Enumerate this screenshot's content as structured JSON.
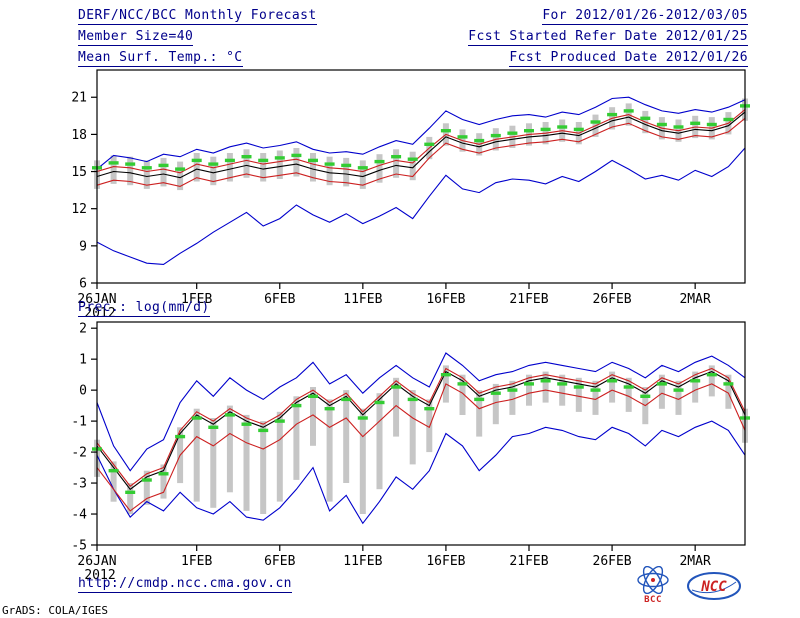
{
  "header": {
    "title": "DERF/NCC/BCC Monthly Forecast",
    "member_size": "Member Size=40",
    "for_range": "For 2012/01/26-2012/03/05",
    "fcst_refer": "Fcst Started Refer Date 2012/01/25",
    "fcst_produced": "Fcst Produced Date 2012/01/26"
  },
  "footer": {
    "url": "http://cmdp.ncc.cma.gov.cn",
    "credit": "GrADS: COLA/IGES",
    "logos": [
      {
        "name": "bcc-logo",
        "label": "BCC"
      },
      {
        "name": "ncc-logo",
        "label": "NCC"
      }
    ]
  },
  "colors": {
    "blue": "#0000cc",
    "red": "#cc2020",
    "black": "#000000",
    "green": "#33cc33",
    "spread_bar": "#c6c6c6",
    "header_text": "#00008b"
  },
  "chart_data": [
    {
      "name": "surface-temperature",
      "type": "line",
      "title": "Mean Surf. Temp.: °C",
      "xlabel": "",
      "ylabel": "°C",
      "grid": false,
      "legend": "none",
      "n_points": 40,
      "ylim": [
        6,
        23.2
      ],
      "yticks": [
        6,
        9,
        12,
        15,
        18,
        21
      ],
      "xticks": [
        {
          "index": 0,
          "label": "26JAN",
          "sublabel": "2012"
        },
        {
          "index": 6,
          "label": "1FEB"
        },
        {
          "index": 11,
          "label": "6FEB"
        },
        {
          "index": 16,
          "label": "11FEB"
        },
        {
          "index": 21,
          "label": "16FEB"
        },
        {
          "index": 26,
          "label": "21FEB"
        },
        {
          "index": 31,
          "label": "26FEB"
        },
        {
          "index": 36,
          "label": "2MAR"
        }
      ],
      "series": [
        {
          "name": "ensemble-max",
          "color": "blue",
          "style": "line",
          "values": [
            15.2,
            16.3,
            16.1,
            15.8,
            16.4,
            16.2,
            16.8,
            16.5,
            17.0,
            17.3,
            16.9,
            17.1,
            17.4,
            16.8,
            16.5,
            16.6,
            16.4,
            17.0,
            17.5,
            17.2,
            18.5,
            19.9,
            19.2,
            18.8,
            19.2,
            19.5,
            19.6,
            19.4,
            19.8,
            19.6,
            20.2,
            20.9,
            21.0,
            20.4,
            19.9,
            19.7,
            20.0,
            19.8,
            20.2,
            20.8
          ]
        },
        {
          "name": "ensemble-min",
          "color": "blue",
          "style": "line",
          "values": [
            9.3,
            8.6,
            8.1,
            7.6,
            7.5,
            8.4,
            9.2,
            10.1,
            10.9,
            11.7,
            10.6,
            11.2,
            12.3,
            11.5,
            10.9,
            11.6,
            10.8,
            11.4,
            12.1,
            11.2,
            13.0,
            14.7,
            13.6,
            13.3,
            14.1,
            14.4,
            14.3,
            14.0,
            14.6,
            14.2,
            15.0,
            15.9,
            15.2,
            14.4,
            14.7,
            14.3,
            15.1,
            14.6,
            15.4,
            16.9
          ]
        },
        {
          "name": "upper-quartile",
          "color": "red",
          "style": "line",
          "values": [
            15.0,
            15.4,
            15.3,
            15.0,
            15.2,
            14.9,
            15.6,
            15.3,
            15.6,
            15.9,
            15.6,
            15.8,
            16.0,
            15.6,
            15.3,
            15.2,
            15.0,
            15.5,
            15.9,
            15.7,
            16.9,
            18.0,
            17.5,
            17.2,
            17.6,
            17.8,
            18.0,
            18.1,
            18.3,
            18.1,
            18.7,
            19.3,
            19.6,
            19.0,
            18.5,
            18.3,
            18.6,
            18.5,
            18.9,
            20.0
          ]
        },
        {
          "name": "lower-quartile",
          "color": "red",
          "style": "line",
          "values": [
            13.9,
            14.3,
            14.2,
            13.9,
            14.1,
            13.8,
            14.5,
            14.2,
            14.5,
            14.8,
            14.5,
            14.7,
            14.9,
            14.5,
            14.2,
            14.1,
            13.9,
            14.4,
            14.8,
            14.6,
            16.1,
            17.3,
            16.8,
            16.5,
            16.9,
            17.1,
            17.3,
            17.4,
            17.6,
            17.4,
            18.0,
            18.6,
            18.9,
            18.3,
            17.8,
            17.6,
            17.9,
            17.8,
            18.2,
            19.3
          ]
        },
        {
          "name": "median",
          "color": "black",
          "style": "line",
          "values": [
            14.6,
            15.0,
            14.9,
            14.6,
            14.8,
            14.5,
            15.2,
            14.9,
            15.2,
            15.5,
            15.2,
            15.4,
            15.6,
            15.2,
            14.9,
            14.8,
            14.6,
            15.1,
            15.5,
            15.3,
            16.6,
            17.8,
            17.3,
            17.0,
            17.4,
            17.6,
            17.8,
            17.9,
            18.1,
            17.9,
            18.5,
            19.1,
            19.4,
            18.8,
            18.3,
            18.1,
            18.4,
            18.3,
            18.7,
            19.8
          ]
        },
        {
          "name": "ensemble-mean",
          "color": "green",
          "style": "dash-markers",
          "values": [
            15.3,
            15.7,
            15.6,
            15.3,
            15.5,
            15.2,
            15.9,
            15.6,
            15.9,
            16.2,
            15.9,
            16.1,
            16.3,
            15.9,
            15.6,
            15.5,
            15.3,
            15.8,
            16.2,
            16.0,
            17.2,
            18.3,
            17.8,
            17.5,
            17.9,
            18.1,
            18.3,
            18.4,
            18.6,
            18.4,
            19.0,
            19.6,
            19.9,
            19.3,
            18.8,
            18.6,
            18.9,
            18.8,
            19.2,
            20.3
          ]
        }
      ],
      "spread_bars": {
        "high": [
          15.9,
          16.3,
          16.2,
          15.9,
          16.1,
          15.8,
          16.5,
          16.2,
          16.5,
          16.8,
          16.5,
          16.7,
          16.9,
          16.5,
          16.2,
          16.1,
          15.9,
          16.4,
          16.8,
          16.6,
          17.8,
          18.9,
          18.4,
          18.1,
          18.5,
          18.7,
          18.9,
          19.0,
          19.2,
          19.0,
          19.6,
          20.2,
          20.5,
          19.9,
          19.4,
          19.2,
          19.5,
          19.4,
          19.8,
          20.9
        ],
        "low": [
          13.6,
          14.0,
          13.9,
          13.6,
          13.8,
          13.5,
          14.2,
          13.9,
          14.2,
          14.5,
          14.2,
          14.4,
          14.6,
          14.2,
          13.9,
          13.8,
          13.6,
          14.1,
          14.5,
          14.3,
          16.0,
          17.1,
          16.6,
          16.3,
          16.7,
          16.9,
          17.1,
          17.2,
          17.4,
          17.2,
          17.8,
          18.4,
          18.7,
          18.1,
          17.6,
          17.4,
          17.7,
          17.6,
          18.0,
          19.1
        ]
      }
    },
    {
      "name": "precipitation",
      "type": "line",
      "title": "Prec.: log(mm/d)",
      "xlabel": "",
      "ylabel": "log(mm/d)",
      "grid": false,
      "legend": "none",
      "n_points": 40,
      "ylim": [
        -5,
        2.2
      ],
      "yticks": [
        2,
        1,
        0,
        -1,
        -2,
        -3,
        -4,
        -5
      ],
      "xticks": [
        {
          "index": 0,
          "label": "26JAN",
          "sublabel": "2012"
        },
        {
          "index": 6,
          "label": "1FEB"
        },
        {
          "index": 11,
          "label": "6FEB"
        },
        {
          "index": 16,
          "label": "11FEB"
        },
        {
          "index": 21,
          "label": "16FEB"
        },
        {
          "index": 26,
          "label": "21FEB"
        },
        {
          "index": 31,
          "label": "26FEB"
        },
        {
          "index": 36,
          "label": "2MAR"
        }
      ],
      "series": [
        {
          "name": "ensemble-max",
          "color": "blue",
          "style": "line",
          "values": [
            -0.4,
            -1.8,
            -2.6,
            -1.9,
            -1.6,
            -0.4,
            0.3,
            -0.2,
            0.4,
            0.0,
            -0.3,
            0.1,
            0.4,
            0.9,
            0.2,
            0.5,
            -0.1,
            0.4,
            0.8,
            0.4,
            0.1,
            1.2,
            0.8,
            0.3,
            0.5,
            0.6,
            0.8,
            0.9,
            0.8,
            0.7,
            0.6,
            0.9,
            0.7,
            0.4,
            0.8,
            0.6,
            0.9,
            1.1,
            0.8,
            0.4
          ]
        },
        {
          "name": "ensemble-min",
          "color": "blue",
          "style": "line",
          "values": [
            -2.1,
            -3.2,
            -4.1,
            -3.6,
            -3.9,
            -3.3,
            -3.8,
            -4.0,
            -3.6,
            -4.1,
            -4.2,
            -3.8,
            -3.2,
            -2.5,
            -3.9,
            -3.4,
            -4.3,
            -3.6,
            -2.8,
            -3.2,
            -2.6,
            -1.4,
            -1.8,
            -2.6,
            -2.1,
            -1.5,
            -1.4,
            -1.2,
            -1.3,
            -1.5,
            -1.6,
            -1.2,
            -1.4,
            -1.8,
            -1.3,
            -1.5,
            -1.2,
            -1.0,
            -1.3,
            -2.1
          ]
        },
        {
          "name": "upper-quartile",
          "color": "red",
          "style": "line",
          "values": [
            -1.7,
            -2.4,
            -3.1,
            -2.7,
            -2.5,
            -1.3,
            -0.7,
            -1.0,
            -0.6,
            -0.9,
            -1.1,
            -0.8,
            -0.3,
            0.0,
            -0.4,
            -0.1,
            -0.7,
            -0.2,
            0.3,
            -0.1,
            -0.4,
            0.7,
            0.4,
            -0.1,
            0.1,
            0.2,
            0.4,
            0.5,
            0.4,
            0.3,
            0.2,
            0.5,
            0.3,
            0.0,
            0.4,
            0.2,
            0.5,
            0.7,
            0.4,
            -0.7
          ]
        },
        {
          "name": "lower-quartile",
          "color": "red",
          "style": "line",
          "values": [
            -2.5,
            -3.2,
            -3.9,
            -3.5,
            -3.3,
            -2.1,
            -1.5,
            -1.8,
            -1.4,
            -1.7,
            -1.9,
            -1.6,
            -1.1,
            -0.8,
            -1.2,
            -0.9,
            -1.5,
            -1.0,
            -0.5,
            -0.9,
            -1.2,
            0.2,
            -0.1,
            -0.6,
            -0.4,
            -0.3,
            -0.1,
            0.0,
            -0.1,
            -0.2,
            -0.3,
            0.0,
            -0.2,
            -0.5,
            -0.1,
            -0.3,
            0.0,
            0.2,
            -0.1,
            -1.3
          ]
        },
        {
          "name": "median",
          "color": "black",
          "style": "line",
          "values": [
            -1.8,
            -2.5,
            -3.2,
            -2.8,
            -2.6,
            -1.4,
            -0.8,
            -1.1,
            -0.7,
            -1.0,
            -1.2,
            -0.9,
            -0.4,
            -0.1,
            -0.5,
            -0.2,
            -0.8,
            -0.3,
            0.2,
            -0.2,
            -0.5,
            0.6,
            0.3,
            -0.2,
            0.0,
            0.1,
            0.3,
            0.4,
            0.3,
            0.2,
            0.1,
            0.4,
            0.2,
            -0.1,
            0.3,
            0.1,
            0.4,
            0.6,
            0.3,
            -0.8
          ]
        },
        {
          "name": "ensemble-mean",
          "color": "green",
          "style": "dash-markers",
          "values": [
            -1.9,
            -2.6,
            -3.3,
            -2.9,
            -2.7,
            -1.5,
            -0.9,
            -1.2,
            -0.8,
            -1.1,
            -1.3,
            -1.0,
            -0.5,
            -0.2,
            -0.6,
            -0.3,
            -0.9,
            -0.4,
            0.1,
            -0.3,
            -0.6,
            0.5,
            0.2,
            -0.3,
            -0.1,
            0.0,
            0.2,
            0.3,
            0.2,
            0.1,
            0.0,
            0.3,
            0.1,
            -0.2,
            0.2,
            0.0,
            0.3,
            0.5,
            0.2,
            -0.9
          ]
        }
      ],
      "spread_bars": {
        "high": [
          -1.6,
          -2.3,
          -3.0,
          -2.6,
          -2.4,
          -1.2,
          -0.6,
          -0.9,
          -0.5,
          -0.8,
          -1.0,
          -0.7,
          -0.2,
          0.1,
          -0.3,
          0.0,
          -0.6,
          -0.1,
          0.4,
          0.0,
          -0.3,
          0.8,
          0.5,
          0.0,
          0.2,
          0.3,
          0.5,
          0.6,
          0.5,
          0.4,
          0.3,
          0.6,
          0.4,
          0.1,
          0.5,
          0.3,
          0.6,
          0.8,
          0.5,
          -0.6
        ],
        "low": [
          -2.8,
          -3.6,
          -4.0,
          -3.7,
          -3.5,
          -3.0,
          -3.6,
          -3.8,
          -3.3,
          -3.9,
          -4.0,
          -3.6,
          -2.9,
          -1.8,
          -3.6,
          -3.0,
          -4.0,
          -3.2,
          -1.5,
          -2.4,
          -2.0,
          -0.4,
          -0.8,
          -1.5,
          -1.1,
          -0.8,
          -0.5,
          -0.4,
          -0.5,
          -0.7,
          -0.8,
          -0.4,
          -0.7,
          -1.1,
          -0.6,
          -0.8,
          -0.4,
          -0.2,
          -0.6,
          -1.7
        ]
      }
    }
  ]
}
